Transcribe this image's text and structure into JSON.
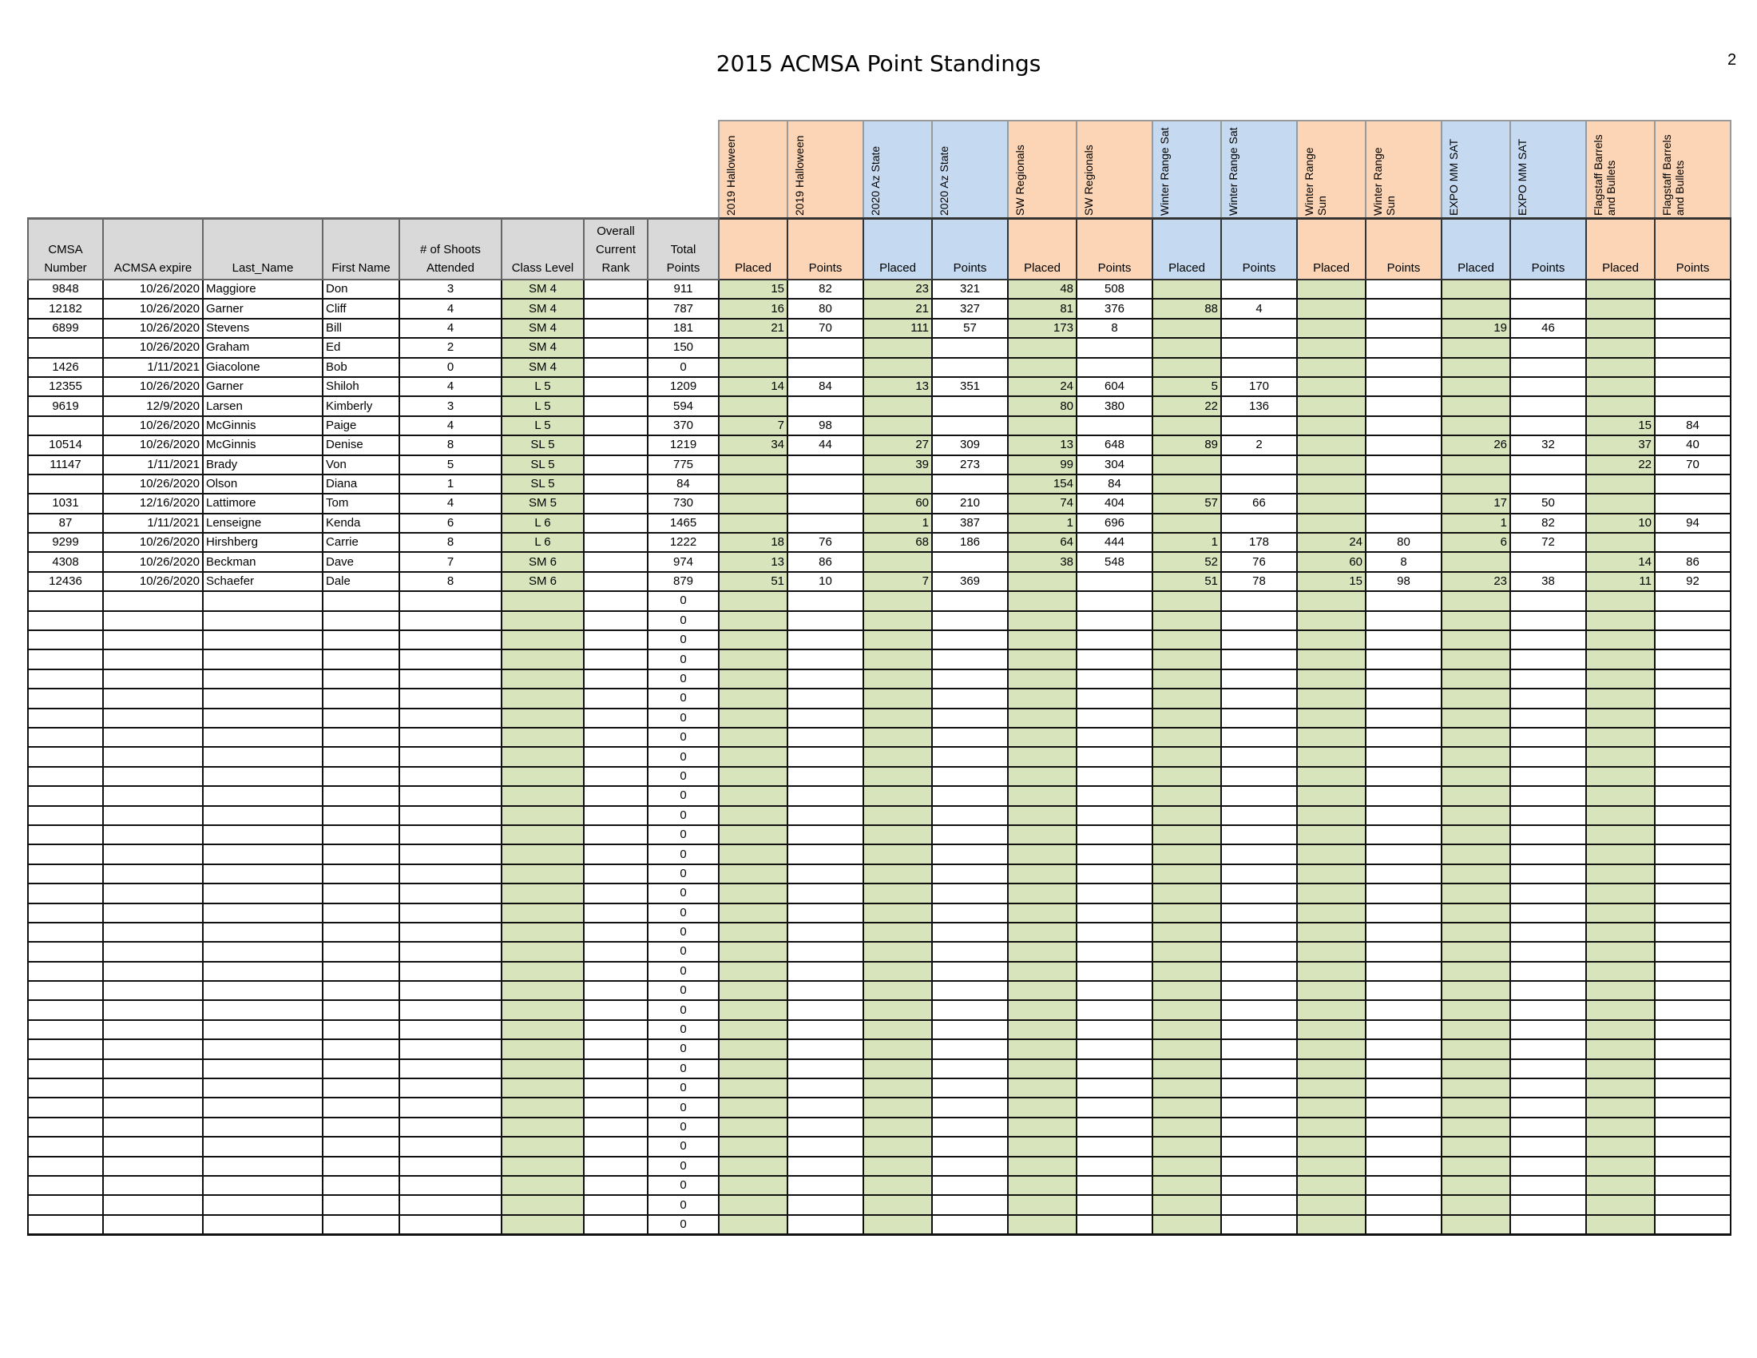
{
  "document": {
    "title": "2015 ACMSA Point Standings",
    "page_number": "2"
  },
  "colors": {
    "peach": "#fbd5b5",
    "blue": "#c5d9f1",
    "green": "#d8e4bc",
    "header_gray": "#d9d9d9"
  },
  "events": [
    {
      "name": "2019 Halloween",
      "color": "peach"
    },
    {
      "name": "2020 Az State",
      "color": "blue"
    },
    {
      "name": "SW Regionals",
      "color": "peach"
    },
    {
      "name": "Winter Range Sat",
      "color": "blue"
    },
    {
      "name": "Winter Range Sun",
      "color": "peach"
    },
    {
      "name": "EXPO MM SAT",
      "color": "blue"
    },
    {
      "name": "Flagstaff Barrels and Bullets",
      "color": "peach"
    }
  ],
  "columns": {
    "cmsa": "CMSA\nNumber",
    "expire": "ACMSA expire",
    "last": "Last_Name",
    "first": "First Name",
    "shoots": "# of Shoots\nAttended",
    "class": "Class  Level",
    "rank": "Overall\nCurrent\nRank",
    "total": "Total\nPoints",
    "placed": "Placed",
    "points": "Points"
  },
  "rows": [
    {
      "cmsa": "9848",
      "expire": "10/26/2020",
      "last": "Maggiore",
      "first": "Don",
      "shoots": "3",
      "class": "SM 4",
      "rank": "",
      "total": "911",
      "ev": [
        [
          "15",
          "82"
        ],
        [
          "23",
          "321"
        ],
        [
          "48",
          "508"
        ],
        [
          "",
          ""
        ],
        [
          "",
          ""
        ],
        [
          "",
          ""
        ],
        [
          "",
          ""
        ]
      ]
    },
    {
      "cmsa": "12182",
      "expire": "10/26/2020",
      "last": "Garner",
      "first": "Cliff",
      "shoots": "4",
      "class": "SM 4",
      "rank": "",
      "total": "787",
      "ev": [
        [
          "16",
          "80"
        ],
        [
          "21",
          "327"
        ],
        [
          "81",
          "376"
        ],
        [
          "88",
          "4"
        ],
        [
          "",
          ""
        ],
        [
          "",
          ""
        ],
        [
          "",
          ""
        ]
      ]
    },
    {
      "cmsa": "6899",
      "expire": "10/26/2020",
      "last": "Stevens",
      "first": "Bill",
      "shoots": "4",
      "class": "SM 4",
      "rank": "",
      "total": "181",
      "ev": [
        [
          "21",
          "70"
        ],
        [
          "111",
          "57"
        ],
        [
          "173",
          "8"
        ],
        [
          "",
          ""
        ],
        [
          "",
          ""
        ],
        [
          "19",
          "46"
        ],
        [
          "",
          ""
        ]
      ]
    },
    {
      "cmsa": "",
      "expire": "10/26/2020",
      "last": "Graham",
      "first": "Ed",
      "shoots": "2",
      "class": "SM 4",
      "rank": "",
      "total": "150",
      "ev": [
        [
          "",
          ""
        ],
        [
          "",
          ""
        ],
        [
          "",
          ""
        ],
        [
          "",
          ""
        ],
        [
          "",
          ""
        ],
        [
          "",
          ""
        ],
        [
          "",
          ""
        ]
      ]
    },
    {
      "cmsa": "1426",
      "expire": "1/11/2021",
      "last": "Giacolone",
      "first": "Bob",
      "shoots": "0",
      "class": "SM 4",
      "rank": "",
      "total": "0",
      "ev": [
        [
          "",
          ""
        ],
        [
          "",
          ""
        ],
        [
          "",
          ""
        ],
        [
          "",
          ""
        ],
        [
          "",
          ""
        ],
        [
          "",
          ""
        ],
        [
          "",
          ""
        ]
      ]
    },
    {
      "cmsa": "12355",
      "expire": "10/26/2020",
      "last": "Garner",
      "first": "Shiloh",
      "shoots": "4",
      "class": "L 5",
      "rank": "",
      "total": "1209",
      "ev": [
        [
          "14",
          "84"
        ],
        [
          "13",
          "351"
        ],
        [
          "24",
          "604"
        ],
        [
          "5",
          "170"
        ],
        [
          "",
          ""
        ],
        [
          "",
          ""
        ],
        [
          "",
          ""
        ]
      ]
    },
    {
      "cmsa": "9619",
      "expire": "12/9/2020",
      "last": "Larsen",
      "first": "Kimberly",
      "shoots": "3",
      "class": "L 5",
      "rank": "",
      "total": "594",
      "ev": [
        [
          "",
          ""
        ],
        [
          "",
          ""
        ],
        [
          "80",
          "380"
        ],
        [
          "22",
          "136"
        ],
        [
          "",
          ""
        ],
        [
          "",
          ""
        ],
        [
          "",
          ""
        ]
      ]
    },
    {
      "cmsa": "",
      "expire": "10/26/2020",
      "last": "McGinnis",
      "first": "Paige",
      "shoots": "4",
      "class": "L 5",
      "rank": "",
      "total": "370",
      "ev": [
        [
          "7",
          "98"
        ],
        [
          "",
          ""
        ],
        [
          "",
          ""
        ],
        [
          "",
          ""
        ],
        [
          "",
          ""
        ],
        [
          "",
          ""
        ],
        [
          "15",
          "84"
        ]
      ]
    },
    {
      "cmsa": "10514",
      "expire": "10/26/2020",
      "last": "McGinnis",
      "first": "Denise",
      "shoots": "8",
      "class": "SL 5",
      "rank": "",
      "total": "1219",
      "ev": [
        [
          "34",
          "44"
        ],
        [
          "27",
          "309"
        ],
        [
          "13",
          "648"
        ],
        [
          "89",
          "2"
        ],
        [
          "",
          ""
        ],
        [
          "26",
          "32"
        ],
        [
          "37",
          "40"
        ]
      ]
    },
    {
      "cmsa": "11147",
      "expire": "1/11/2021",
      "last": "Brady",
      "first": "Von",
      "shoots": "5",
      "class": "SL 5",
      "rank": "",
      "total": "775",
      "ev": [
        [
          "",
          ""
        ],
        [
          "39",
          "273"
        ],
        [
          "99",
          "304"
        ],
        [
          "",
          ""
        ],
        [
          "",
          ""
        ],
        [
          "",
          ""
        ],
        [
          "22",
          "70"
        ]
      ]
    },
    {
      "cmsa": "",
      "expire": "10/26/2020",
      "last": "Olson",
      "first": "Diana",
      "shoots": "1",
      "class": "SL 5",
      "rank": "",
      "total": "84",
      "ev": [
        [
          "",
          ""
        ],
        [
          "",
          ""
        ],
        [
          "154",
          "84"
        ],
        [
          "",
          ""
        ],
        [
          "",
          ""
        ],
        [
          "",
          ""
        ],
        [
          "",
          ""
        ]
      ]
    },
    {
      "cmsa": "1031",
      "expire": "12/16/2020",
      "last": "Lattimore",
      "first": "Tom",
      "shoots": "4",
      "class": "SM 5",
      "rank": "",
      "total": "730",
      "ev": [
        [
          "",
          ""
        ],
        [
          "60",
          "210"
        ],
        [
          "74",
          "404"
        ],
        [
          "57",
          "66"
        ],
        [
          "",
          ""
        ],
        [
          "17",
          "50"
        ],
        [
          "",
          ""
        ]
      ]
    },
    {
      "cmsa": "87",
      "expire": "1/11/2021",
      "last": "Lenseigne",
      "first": "Kenda",
      "shoots": "6",
      "class": "L 6",
      "rank": "",
      "total": "1465",
      "ev": [
        [
          "",
          ""
        ],
        [
          "1",
          "387"
        ],
        [
          "1",
          "696"
        ],
        [
          "",
          ""
        ],
        [
          "",
          ""
        ],
        [
          "1",
          "82"
        ],
        [
          "10",
          "94"
        ]
      ]
    },
    {
      "cmsa": "9299",
      "expire": "10/26/2020",
      "last": "Hirshberg",
      "first": "Carrie",
      "shoots": "8",
      "class": "L 6",
      "rank": "",
      "total": "1222",
      "ev": [
        [
          "18",
          "76"
        ],
        [
          "68",
          "186"
        ],
        [
          "64",
          "444"
        ],
        [
          "1",
          "178"
        ],
        [
          "24",
          "80"
        ],
        [
          "6",
          "72"
        ],
        [
          "",
          ""
        ]
      ]
    },
    {
      "cmsa": "4308",
      "expire": "10/26/2020",
      "last": "Beckman",
      "first": "Dave",
      "shoots": "7",
      "class": "SM 6",
      "rank": "",
      "total": "974",
      "ev": [
        [
          "13",
          "86"
        ],
        [
          "",
          ""
        ],
        [
          "38",
          "548"
        ],
        [
          "52",
          "76"
        ],
        [
          "60",
          "8"
        ],
        [
          "",
          ""
        ],
        [
          "14",
          "86"
        ]
      ]
    },
    {
      "cmsa": "12436",
      "expire": "10/26/2020",
      "last": "Schaefer",
      "first": "Dale",
      "shoots": "8",
      "class": "SM 6",
      "rank": "",
      "total": "879",
      "ev": [
        [
          "51",
          "10"
        ],
        [
          "7",
          "369"
        ],
        [
          "",
          ""
        ],
        [
          "51",
          "78"
        ],
        [
          "15",
          "98"
        ],
        [
          "23",
          "38"
        ],
        [
          "11",
          "92"
        ]
      ]
    }
  ],
  "empty_row_total": "0",
  "empty_row_count": 33
}
